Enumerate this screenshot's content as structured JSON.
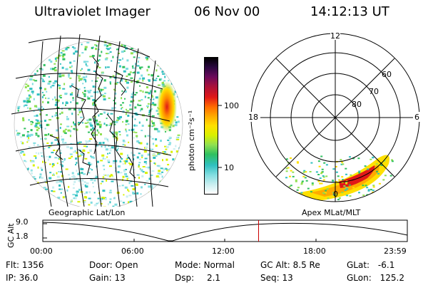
{
  "header": {
    "instrument": "Ultraviolet Imager",
    "date": "06 Nov 00",
    "time": "14:12:13 UT"
  },
  "colorbar": {
    "unit_label": "photon cm⁻²s⁻¹",
    "ticks": [
      "100",
      "10"
    ],
    "colors": [
      "#000000",
      "#2a0840",
      "#6a0a5a",
      "#a8103a",
      "#e01818",
      "#ff6a00",
      "#ffaa00",
      "#ffe000",
      "#d8f000",
      "#90e050",
      "#30c060",
      "#30c0c0",
      "#80dde0",
      "#c8eef0",
      "#ffffff"
    ]
  },
  "polar_plot": {
    "lat_labels": [
      "60",
      "70",
      "80"
    ],
    "mlt_labels": {
      "top": "12",
      "left": "18",
      "right": "6",
      "bottom": "0"
    },
    "projection_label": "Apex MLat/MLT"
  },
  "geo_plot": {
    "projection_label": "Geographic Lat/Lon"
  },
  "altitude_plot": {
    "ylabel": "GC Alt",
    "yticks": [
      "9.0",
      "1.8"
    ],
    "xticks": [
      "00:00",
      "06:00",
      "12:00",
      "18:00",
      "23:59"
    ],
    "current_time_fraction": 0.592,
    "marker_color": "#cc0000"
  },
  "info": {
    "filter": {
      "label": "Flt:",
      "value": "1356"
    },
    "door": {
      "label": "Door:",
      "value": "Open"
    },
    "mode": {
      "label": "Mode:",
      "value": "Normal"
    },
    "gcalt": {
      "label": "GC Alt:",
      "value": "8.5 Re"
    },
    "glat": {
      "label": "GLat:",
      "value": "-6.1"
    },
    "ip": {
      "label": "IP:",
      "value": "36.0"
    },
    "gain": {
      "label": "Gain:",
      "value": "13"
    },
    "dsp": {
      "label": "Dsp:",
      "value": "2.1"
    },
    "seq": {
      "label": "Seq:",
      "value": "13"
    },
    "glon": {
      "label": "GLon:",
      "value": "125.2"
    }
  }
}
